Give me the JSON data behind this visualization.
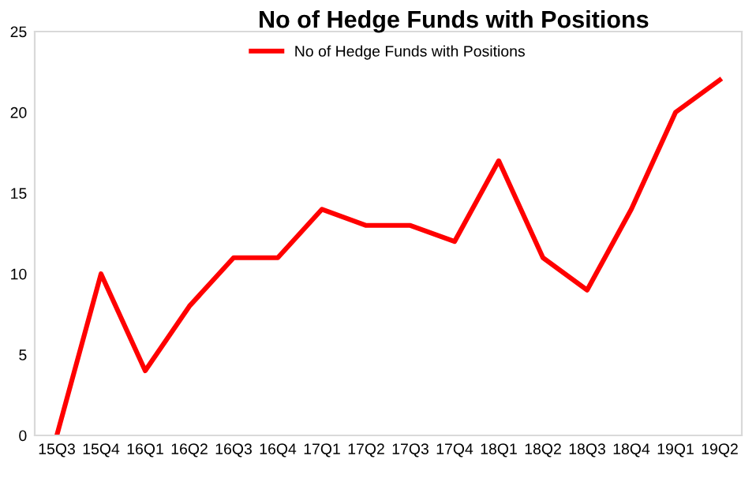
{
  "chart_data": {
    "type": "line",
    "title": "No of Hedge Funds with Positions",
    "categories": [
      "15Q3",
      "15Q4",
      "16Q1",
      "16Q2",
      "16Q3",
      "16Q4",
      "17Q1",
      "17Q2",
      "17Q3",
      "17Q4",
      "18Q1",
      "18Q2",
      "18Q3",
      "18Q4",
      "19Q1",
      "19Q2"
    ],
    "series": [
      {
        "name": "No of Hedge Funds with Positions",
        "color": "#ff0000",
        "values": [
          0,
          10,
          4,
          8,
          11,
          11,
          14,
          13,
          13,
          12,
          17,
          11,
          9,
          14,
          20,
          22
        ]
      }
    ],
    "ylim": [
      0,
      25
    ],
    "yticks": [
      0,
      5,
      10,
      15,
      20,
      25
    ],
    "legend": "top",
    "grid": false,
    "marker": "none",
    "line_style": "solid"
  }
}
